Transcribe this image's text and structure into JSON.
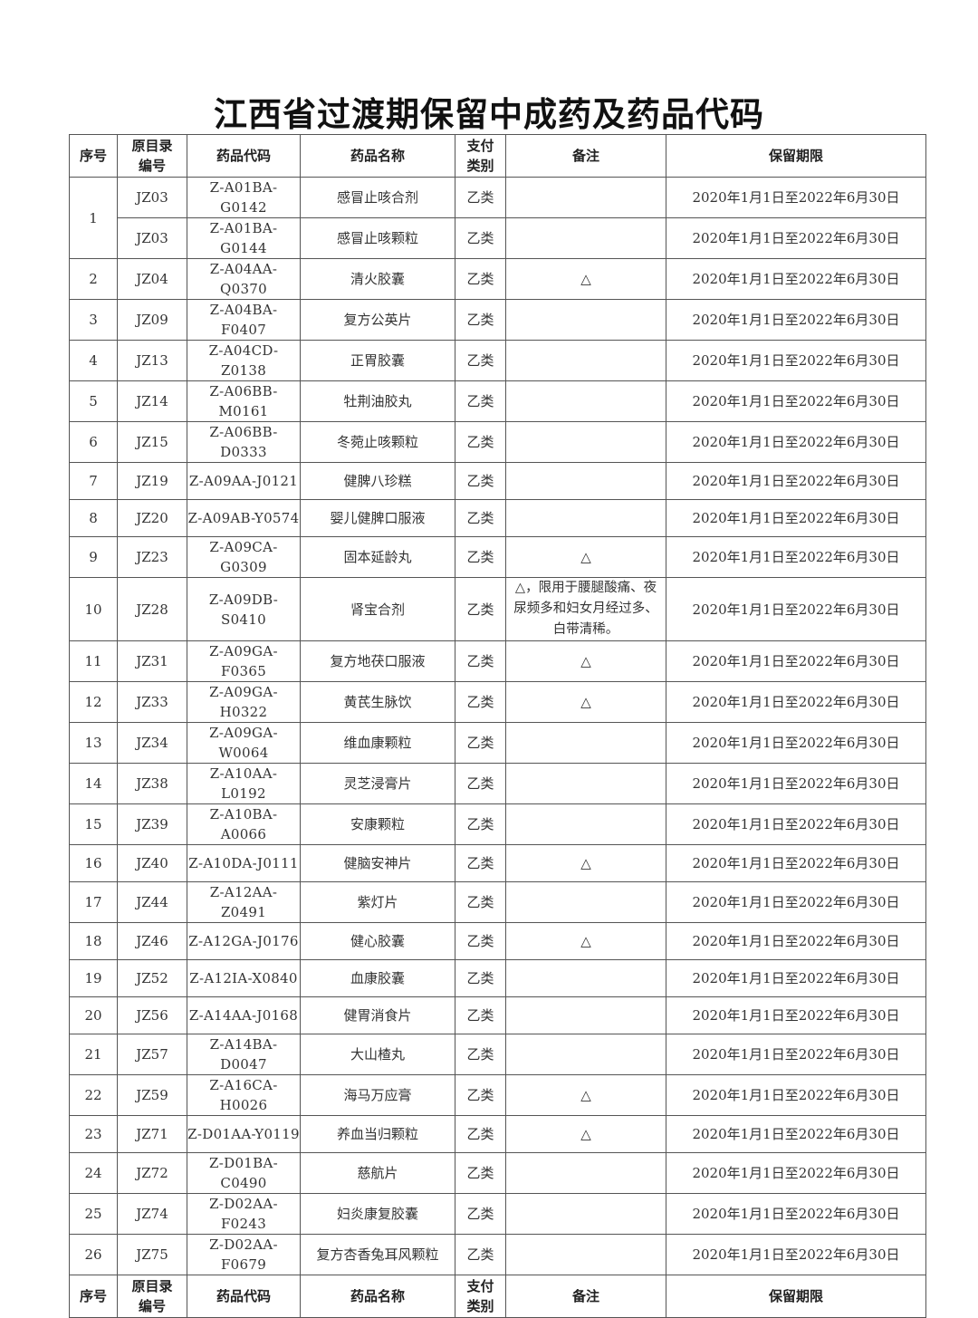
{
  "title": "江西省过渡期保留中成药及药品代码",
  "headers": [
    "序号",
    "原目录编号",
    "药品代码",
    "药品名称",
    "支付类别",
    "备注",
    "保留期限"
  ],
  "header_lines": {
    "catalog": [
      "原目录",
      "编号"
    ],
    "pay": [
      "支付",
      "类别"
    ]
  },
  "period": "2020年1月1日至2022年6月30日",
  "rows": [
    {
      "no": "1",
      "items": [
        {
          "old": "JZ03",
          "code": "Z-A01BA-G0142",
          "name": "感冒止咳合剂",
          "pay": "乙类",
          "note": ""
        },
        {
          "old": "JZ03",
          "code": "Z-A01BA-G0144",
          "name": "感冒止咳颗粒",
          "pay": "乙类",
          "note": ""
        }
      ]
    },
    {
      "no": "2",
      "items": [
        {
          "old": "JZ04",
          "code": "Z-A04AA-Q0370",
          "name": "清火胶囊",
          "pay": "乙类",
          "note": "△"
        }
      ]
    },
    {
      "no": "3",
      "items": [
        {
          "old": "JZ09",
          "code": "Z-A04BA-F0407",
          "name": "复方公英片",
          "pay": "乙类",
          "note": ""
        }
      ]
    },
    {
      "no": "4",
      "items": [
        {
          "old": "JZ13",
          "code": "Z-A04CD-Z0138",
          "name": "正胃胶囊",
          "pay": "乙类",
          "note": ""
        }
      ]
    },
    {
      "no": "5",
      "items": [
        {
          "old": "JZ14",
          "code": "Z-A06BB-M0161",
          "name": "牡荆油胶丸",
          "pay": "乙类",
          "note": ""
        }
      ]
    },
    {
      "no": "6",
      "items": [
        {
          "old": "JZ15",
          "code": "Z-A06BB-D0333",
          "name": "冬菀止咳颗粒",
          "pay": "乙类",
          "note": ""
        }
      ]
    },
    {
      "no": "7",
      "items": [
        {
          "old": "JZ19",
          "code": "Z-A09AA-J0121",
          "name": "健脾八珍糕",
          "pay": "乙类",
          "note": ""
        }
      ]
    },
    {
      "no": "8",
      "items": [
        {
          "old": "JZ20",
          "code": "Z-A09AB-Y0574",
          "name": "婴儿健脾口服液",
          "pay": "乙类",
          "note": ""
        }
      ]
    },
    {
      "no": "9",
      "items": [
        {
          "old": "JZ23",
          "code": "Z-A09CA-G0309",
          "name": "固本延龄丸",
          "pay": "乙类",
          "note": "△"
        }
      ]
    },
    {
      "no": "10",
      "items": [
        {
          "old": "JZ28",
          "code": "Z-A09DB-S0410",
          "name": "肾宝合剂",
          "pay": "乙类",
          "note": "△，限用于腰腿酸痛、夜尿频多和妇女月经过多、白带清稀。"
        }
      ]
    },
    {
      "no": "11",
      "items": [
        {
          "old": "JZ31",
          "code": "Z-A09GA-F0365",
          "name": "复方地茯口服液",
          "pay": "乙类",
          "note": "△"
        }
      ]
    },
    {
      "no": "12",
      "items": [
        {
          "old": "JZ33",
          "code": "Z-A09GA-H0322",
          "name": "黄芪生脉饮",
          "pay": "乙类",
          "note": "△"
        }
      ]
    },
    {
      "no": "13",
      "items": [
        {
          "old": "JZ34",
          "code": "Z-A09GA-W0064",
          "name": "维血康颗粒",
          "pay": "乙类",
          "note": ""
        }
      ]
    },
    {
      "no": "14",
      "items": [
        {
          "old": "JZ38",
          "code": "Z-A10AA-L0192",
          "name": "灵芝浸膏片",
          "pay": "乙类",
          "note": ""
        }
      ]
    },
    {
      "no": "15",
      "items": [
        {
          "old": "JZ39",
          "code": "Z-A10BA-A0066",
          "name": "安康颗粒",
          "pay": "乙类",
          "note": ""
        }
      ]
    },
    {
      "no": "16",
      "items": [
        {
          "old": "JZ40",
          "code": "Z-A10DA-J0111",
          "name": "健脑安神片",
          "pay": "乙类",
          "note": "△"
        }
      ]
    },
    {
      "no": "17",
      "items": [
        {
          "old": "JZ44",
          "code": "Z-A12AA-Z0491",
          "name": "紫灯片",
          "pay": "乙类",
          "note": ""
        }
      ]
    },
    {
      "no": "18",
      "items": [
        {
          "old": "JZ46",
          "code": "Z-A12GA-J0176",
          "name": "健心胶囊",
          "pay": "乙类",
          "note": "△"
        }
      ]
    },
    {
      "no": "19",
      "items": [
        {
          "old": "JZ52",
          "code": "Z-A12IA-X0840",
          "name": "血康胶囊",
          "pay": "乙类",
          "note": ""
        }
      ]
    },
    {
      "no": "20",
      "items": [
        {
          "old": "JZ56",
          "code": "Z-A14AA-J0168",
          "name": "健胃消食片",
          "pay": "乙类",
          "note": ""
        }
      ]
    },
    {
      "no": "21",
      "items": [
        {
          "old": "JZ57",
          "code": "Z-A14BA-D0047",
          "name": "大山楂丸",
          "pay": "乙类",
          "note": ""
        }
      ]
    },
    {
      "no": "22",
      "items": [
        {
          "old": "JZ59",
          "code": "Z-A16CA-H0026",
          "name": "海马万应膏",
          "pay": "乙类",
          "note": "△"
        }
      ]
    },
    {
      "no": "23",
      "items": [
        {
          "old": "JZ71",
          "code": "Z-D01AA-Y0119",
          "name": "养血当归颗粒",
          "pay": "乙类",
          "note": "△"
        }
      ]
    },
    {
      "no": "24",
      "items": [
        {
          "old": "JZ72",
          "code": "Z-D01BA-C0490",
          "name": "慈航片",
          "pay": "乙类",
          "note": ""
        }
      ]
    },
    {
      "no": "25",
      "items": [
        {
          "old": "JZ74",
          "code": "Z-D02AA-F0243",
          "name": "妇炎康复胶囊",
          "pay": "乙类",
          "note": ""
        }
      ]
    },
    {
      "no": "26",
      "items": [
        {
          "old": "JZ75",
          "code": "Z-D02AA-F0679",
          "name": "复方杏香兔耳风颗粒",
          "pay": "乙类",
          "note": ""
        }
      ]
    }
  ]
}
